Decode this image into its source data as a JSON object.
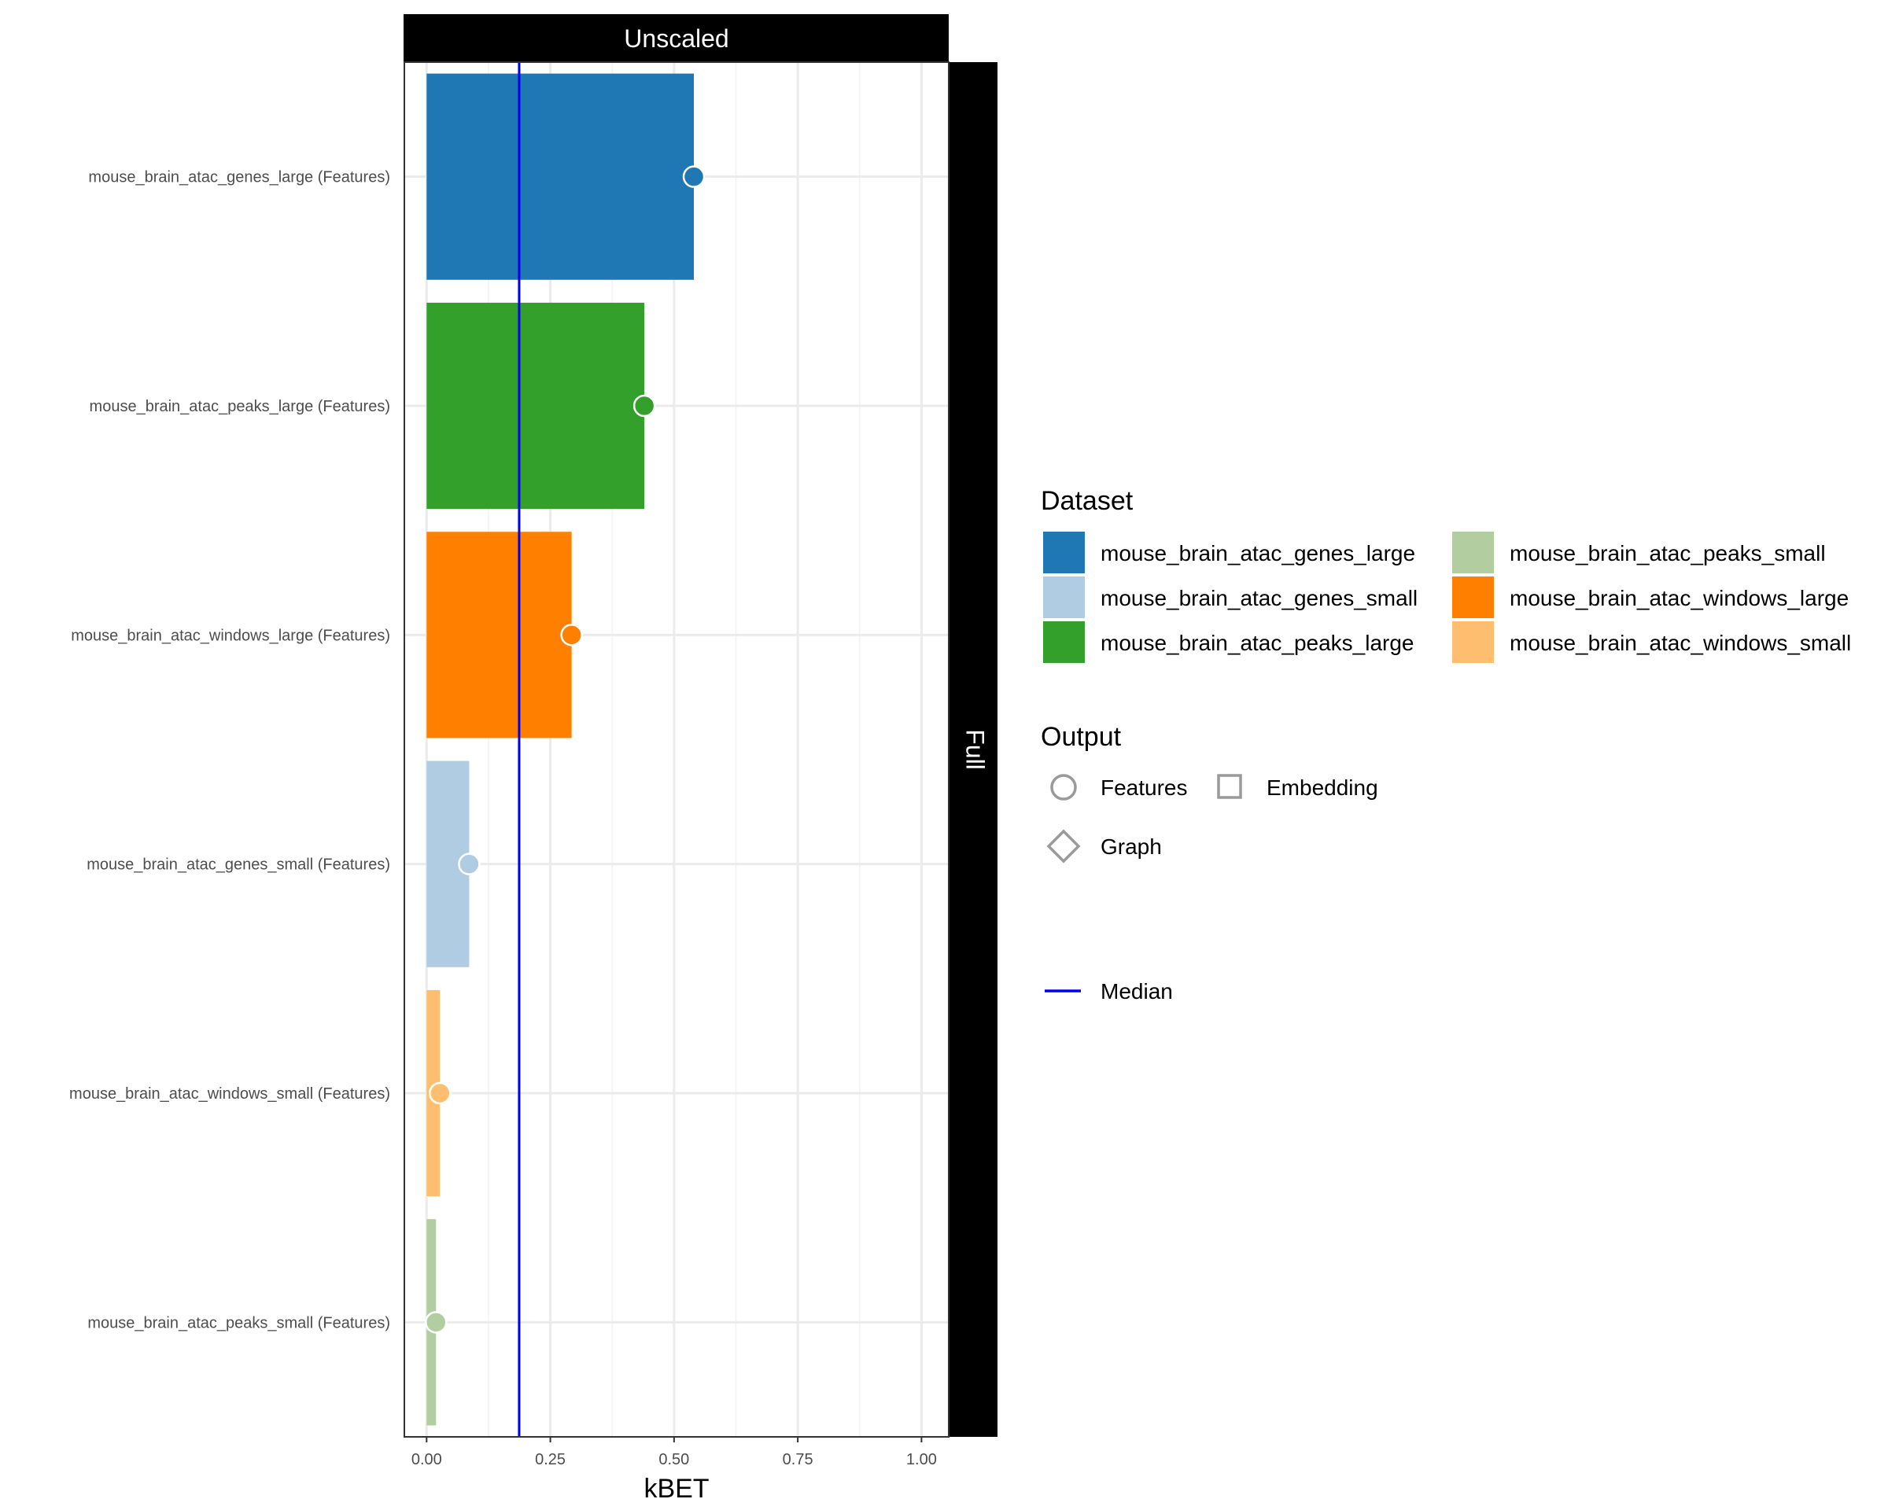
{
  "chart_data": {
    "type": "bar",
    "facet_top": "Unscaled",
    "facet_right": "Full",
    "xlabel": "kBET",
    "xlim": [
      -0.045,
      1.055
    ],
    "x_ticks": [
      0.0,
      0.25,
      0.5,
      0.75,
      1.0
    ],
    "x_tick_labels": [
      "0.00",
      "0.25",
      "0.50",
      "0.75",
      "1.00"
    ],
    "grid": true,
    "median": 0.187,
    "median_color": "#0000ee",
    "categories": [
      "mouse_brain_atac_genes_large (Features)",
      "mouse_brain_atac_peaks_large (Features)",
      "mouse_brain_atac_windows_large (Features)",
      "mouse_brain_atac_genes_small (Features)",
      "mouse_brain_atac_windows_small (Features)",
      "mouse_brain_atac_peaks_small (Features)"
    ],
    "series": [
      {
        "dataset": "mouse_brain_atac_genes_large",
        "value": 0.54,
        "color": "#1f78b4",
        "output": "Features"
      },
      {
        "dataset": "mouse_brain_atac_peaks_large",
        "value": 0.44,
        "color": "#33a02c",
        "output": "Features"
      },
      {
        "dataset": "mouse_brain_atac_windows_large",
        "value": 0.293,
        "color": "#ff7f00",
        "output": "Features"
      },
      {
        "dataset": "mouse_brain_atac_genes_small",
        "value": 0.086,
        "color": "#b0cce3",
        "output": "Features"
      },
      {
        "dataset": "mouse_brain_atac_windows_small",
        "value": 0.027,
        "color": "#fdbf6f",
        "output": "Features"
      },
      {
        "dataset": "mouse_brain_atac_peaks_small",
        "value": 0.019,
        "color": "#b2cd9f",
        "output": "Features"
      }
    ],
    "legend": {
      "placement": "right",
      "dataset_title": "Dataset",
      "dataset_items": [
        {
          "label": "mouse_brain_atac_genes_large",
          "color": "#1f78b4"
        },
        {
          "label": "mouse_brain_atac_genes_small",
          "color": "#b0cce3"
        },
        {
          "label": "mouse_brain_atac_peaks_large",
          "color": "#33a02c"
        },
        {
          "label": "mouse_brain_atac_peaks_small",
          "color": "#b2cd9f"
        },
        {
          "label": "mouse_brain_atac_windows_large",
          "color": "#ff7f00"
        },
        {
          "label": "mouse_brain_atac_windows_small",
          "color": "#fdbf6f"
        }
      ],
      "output_title": "Output",
      "output_items": [
        {
          "label": "Features",
          "shape": "circle-icon"
        },
        {
          "label": "Embedding",
          "shape": "square-icon"
        },
        {
          "label": "Graph",
          "shape": "diamond-icon"
        }
      ],
      "median_label": "Median"
    }
  }
}
